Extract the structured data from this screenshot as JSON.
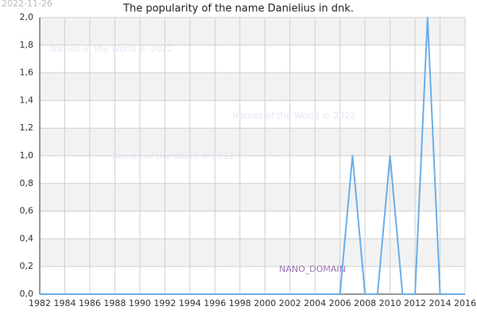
{
  "chart_data": {
    "type": "line",
    "title": "The popularity of the name Danielius in dnk.",
    "date_stamp": "2022-11-26",
    "watermarks": [
      "Names of the World © 2022",
      "Names of the World © 2022",
      "Names of the World © 2022"
    ],
    "domain_label": "NANO_DOMAIN",
    "x": [
      1982,
      1983,
      1984,
      1985,
      1986,
      1987,
      1988,
      1989,
      1990,
      1991,
      1992,
      1993,
      1994,
      1995,
      1996,
      1997,
      1998,
      1999,
      2000,
      2001,
      2002,
      2003,
      2004,
      2005,
      2006,
      2007,
      2008,
      2009,
      2010,
      2011,
      2012,
      2013,
      2014,
      2015,
      2016
    ],
    "values": [
      0,
      0,
      0,
      0,
      0,
      0,
      0,
      0,
      0,
      0,
      0,
      0,
      0,
      0,
      0,
      0,
      0,
      0,
      0,
      0,
      0,
      0,
      0,
      0,
      0,
      1,
      0,
      0,
      1,
      0,
      0,
      2,
      0,
      0,
      0
    ],
    "color": "#6aaee8",
    "xlim": [
      1982,
      2016
    ],
    "xticks": [
      1982,
      1984,
      1986,
      1988,
      1990,
      1992,
      1994,
      1996,
      1998,
      2000,
      2002,
      2004,
      2006,
      2008,
      2010,
      2012,
      2014,
      2016
    ],
    "ylim": [
      0,
      2
    ],
    "yticks": [
      {
        "value": 0,
        "label": "0,0"
      },
      {
        "value": 0.2,
        "label": "0,2"
      },
      {
        "value": 0.4,
        "label": "0,4"
      },
      {
        "value": 0.6,
        "label": "0,6"
      },
      {
        "value": 0.8,
        "label": "0,8"
      },
      {
        "value": 1,
        "label": "1,0"
      },
      {
        "value": 1.2,
        "label": "1,2"
      },
      {
        "value": 1.4,
        "label": "1,4"
      },
      {
        "value": 1.6,
        "label": "1,6"
      },
      {
        "value": 1.8,
        "label": "1,8"
      },
      {
        "value": 2,
        "label": "2,0"
      }
    ],
    "grid": true
  }
}
